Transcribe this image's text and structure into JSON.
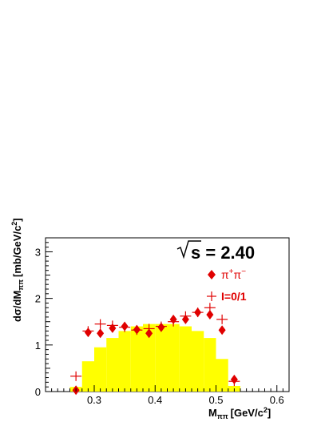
{
  "chart_data": {
    "type": "histogram-with-points",
    "xlabel": "M",
    "xlabel_sub": "ππ",
    "xlabel_unit": "[GeV/c",
    "xlabel_unit_sup": "2",
    "xlabel_unit_close": "]",
    "ylabel": "dσ/dM",
    "ylabel_sub": "ππ",
    "ylabel_unit": "[mb/GeV/c",
    "ylabel_unit_sup": "2",
    "ylabel_unit_close": "]",
    "xlim": [
      0.22,
      0.62
    ],
    "ylim": [
      0,
      3.3
    ],
    "xticks": [
      0.3,
      0.4,
      0.5,
      0.6
    ],
    "xtick_labels": [
      "0.3",
      "0.4",
      "0.5",
      "0.6"
    ],
    "yticks": [
      0,
      1,
      2,
      3
    ],
    "ytick_labels": [
      "0",
      "1",
      "2",
      "3"
    ],
    "annotation": {
      "sqrt_label": "s",
      "value": " = 2.40"
    },
    "legend": [
      {
        "name": "π+π−",
        "base": "π",
        "sup1": "+",
        "mid": "π",
        "sup2": "−",
        "marker": "diamond"
      },
      {
        "name": "I=0/1",
        "marker": "cross"
      }
    ],
    "colors": {
      "histogram": "#ffff00",
      "points": "#e00000",
      "frame": "#000000"
    },
    "histogram": {
      "bin_edges": [
        0.26,
        0.28,
        0.3,
        0.32,
        0.34,
        0.36,
        0.38,
        0.4,
        0.42,
        0.44,
        0.46,
        0.48,
        0.5,
        0.52,
        0.54
      ],
      "values": [
        0.1,
        0.65,
        0.95,
        1.15,
        1.3,
        1.4,
        1.45,
        1.45,
        1.45,
        1.4,
        1.3,
        1.15,
        0.7,
        0.12
      ]
    },
    "series": [
      {
        "name": "π+π−",
        "marker": "diamond",
        "x": [
          0.27,
          0.29,
          0.31,
          0.33,
          0.35,
          0.37,
          0.39,
          0.41,
          0.43,
          0.45,
          0.47,
          0.49,
          0.51,
          0.53
        ],
        "y": [
          0.03,
          1.27,
          1.25,
          1.36,
          1.4,
          1.33,
          1.25,
          1.38,
          1.55,
          1.55,
          1.7,
          1.65,
          1.32,
          0.26
        ]
      },
      {
        "name": "I=0/1",
        "marker": "cross",
        "x": [
          0.27,
          0.29,
          0.31,
          0.33,
          0.35,
          0.37,
          0.39,
          0.41,
          0.43,
          0.45,
          0.47,
          0.49,
          0.51,
          0.53
        ],
        "y": [
          0.33,
          1.3,
          1.45,
          1.42,
          1.38,
          1.32,
          1.35,
          1.4,
          1.5,
          1.62,
          1.7,
          1.8,
          1.55,
          0.22
        ]
      }
    ]
  }
}
